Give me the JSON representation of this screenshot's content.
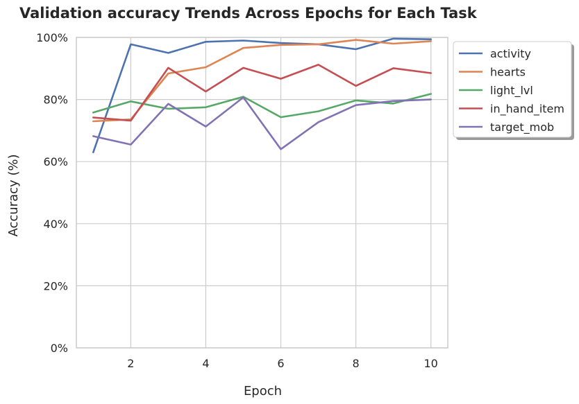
{
  "chart_data": {
    "type": "line",
    "title": "Validation accuracy Trends Across Epochs for Each Task",
    "xlabel": "Epoch",
    "ylabel": "Accuracy (%)",
    "x": [
      1,
      2,
      3,
      4,
      5,
      6,
      7,
      8,
      9,
      10
    ],
    "xlim": [
      0.55,
      10.45
    ],
    "ylim": [
      0,
      100
    ],
    "xticks": [
      2,
      4,
      6,
      8,
      10
    ],
    "xtick_labels": [
      "2",
      "4",
      "6",
      "8",
      "10"
    ],
    "yticks": [
      0,
      20,
      40,
      60,
      80,
      100
    ],
    "ytick_labels": [
      "0%",
      "20%",
      "40%",
      "60%",
      "80%",
      "100%"
    ],
    "grid": true,
    "legend_position": "outside-top-right",
    "series": [
      {
        "name": "activity",
        "color": "#4c72b0",
        "values": [
          63.0,
          97.8,
          95.0,
          98.6,
          99.0,
          98.2,
          97.8,
          96.2,
          99.6,
          99.4
        ]
      },
      {
        "name": "hearts",
        "color": "#dd8452",
        "values": [
          73.0,
          73.6,
          88.4,
          90.4,
          96.6,
          97.6,
          97.8,
          99.2,
          98.0,
          98.8
        ]
      },
      {
        "name": "light_lvl",
        "color": "#55a868",
        "values": [
          75.8,
          79.4,
          77.0,
          77.5,
          80.9,
          74.3,
          76.2,
          79.7,
          78.7,
          81.8
        ]
      },
      {
        "name": "in_hand_item",
        "color": "#c44e52",
        "values": [
          74.2,
          73.2,
          90.2,
          82.6,
          90.2,
          86.7,
          91.2,
          84.4,
          90.1,
          88.5
        ]
      },
      {
        "name": "target_mob",
        "color": "#8172b3",
        "values": [
          68.2,
          65.5,
          78.6,
          71.3,
          80.7,
          64.0,
          72.7,
          78.2,
          79.5,
          80.0
        ]
      }
    ]
  }
}
